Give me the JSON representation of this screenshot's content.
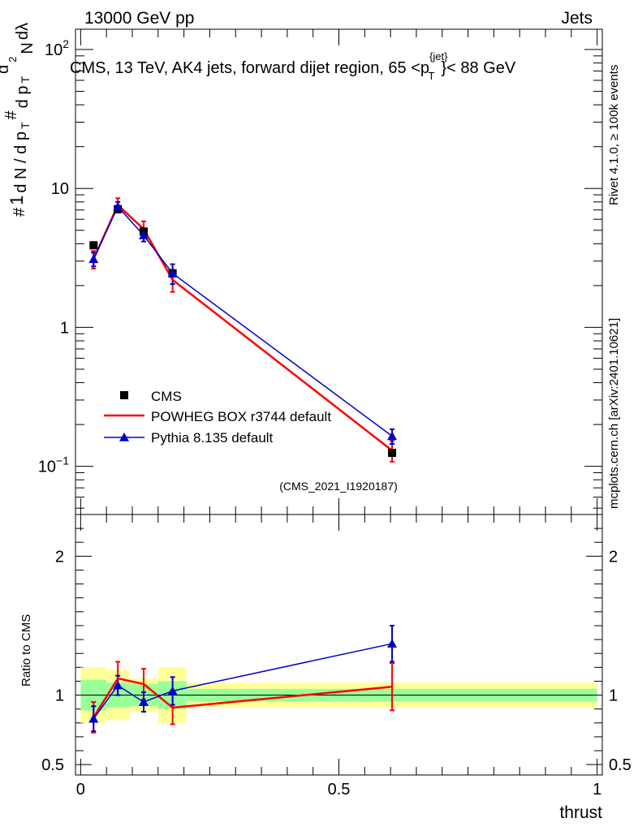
{
  "header": {
    "left": "13000 GeV pp",
    "right": "Jets"
  },
  "chart_data": {
    "type": "line",
    "title": "CMS, 13 TeV, AK4 jets, forward dijet region, 65 <p",
    "title_sup": "{jet}",
    "title_sub": "T",
    "title_end": "}< 88 GeV",
    "ylabel_parts": [
      "#",
      "1",
      "d N / d p",
      "T",
      "#",
      "d p",
      "T",
      "d",
      "2",
      "N",
      "dλ"
    ],
    "xlabel": "thrust",
    "ratio_ylabel": "Ratio to CMS",
    "side_label_top": "Rivet 4.1.0, ≥ 100k events",
    "side_label_bottom": "mcplots.cern.ch [arXiv:2401.10621]",
    "watermark": "(CMS_2021_I1920187)",
    "xlim": [
      -0.01,
      1.01
    ],
    "ylim_log": [
      0.045,
      140
    ],
    "ratio_ylim": [
      0.425,
      2.3
    ],
    "y_ticks": [
      {
        "v": 0.1,
        "label": "10",
        "sup": "−1"
      },
      {
        "v": 1,
        "label": "1",
        "sup": ""
      },
      {
        "v": 10,
        "label": "10",
        "sup": ""
      },
      {
        "v": 100,
        "label": "10",
        "sup": "2"
      }
    ],
    "x_ticks": [
      {
        "v": 0,
        "label": "0"
      },
      {
        "v": 0.5,
        "label": "0.5"
      },
      {
        "v": 1,
        "label": "1"
      }
    ],
    "ratio_ticks": [
      {
        "v": 0.5,
        "label": "0.5"
      },
      {
        "v": 1,
        "label": "1"
      },
      {
        "v": 2,
        "label": "2"
      }
    ],
    "bins": [
      {
        "lo": 0.0,
        "hi": 0.05
      },
      {
        "lo": 0.05,
        "hi": 0.095
      },
      {
        "lo": 0.095,
        "hi": 0.15
      },
      {
        "lo": 0.15,
        "hi": 0.205
      },
      {
        "lo": 0.205,
        "hi": 1.0
      }
    ],
    "x": [
      0.025,
      0.072,
      0.122,
      0.178,
      0.603
    ],
    "band_inner": [
      0.11,
      0.09,
      0.08,
      0.1,
      0.045
    ],
    "band_outer": [
      0.2,
      0.18,
      0.12,
      0.2,
      0.09
    ],
    "series": [
      {
        "name": "CMS",
        "color": "#000000",
        "marker": "square",
        "values": [
          3.9,
          7.1,
          4.9,
          2.45,
          0.125
        ],
        "ratio": [
          1,
          1,
          1,
          1,
          1
        ]
      },
      {
        "name": "POWHEG BOX r3744 default",
        "color": "#ff0000",
        "marker": "none",
        "values": [
          3.1,
          7.6,
          5.1,
          2.2,
          0.13
        ],
        "errors": [
          0.45,
          0.9,
          0.7,
          0.4,
          0.022
        ],
        "ratio": [
          0.84,
          1.12,
          1.08,
          0.91,
          1.06
        ],
        "ratio_err": [
          0.11,
          0.12,
          0.11,
          0.12,
          0.17
        ]
      },
      {
        "name": "Pythia 8.135 default",
        "color": "#0000cc",
        "marker": "triangle",
        "values": [
          3.1,
          7.4,
          4.6,
          2.45,
          0.165
        ],
        "errors": [
          0.35,
          0.6,
          0.45,
          0.4,
          0.02
        ],
        "ratio": [
          0.83,
          1.07,
          0.95,
          1.03,
          1.37
        ],
        "ratio_err": [
          0.09,
          0.07,
          0.07,
          0.1,
          0.13
        ]
      }
    ]
  }
}
